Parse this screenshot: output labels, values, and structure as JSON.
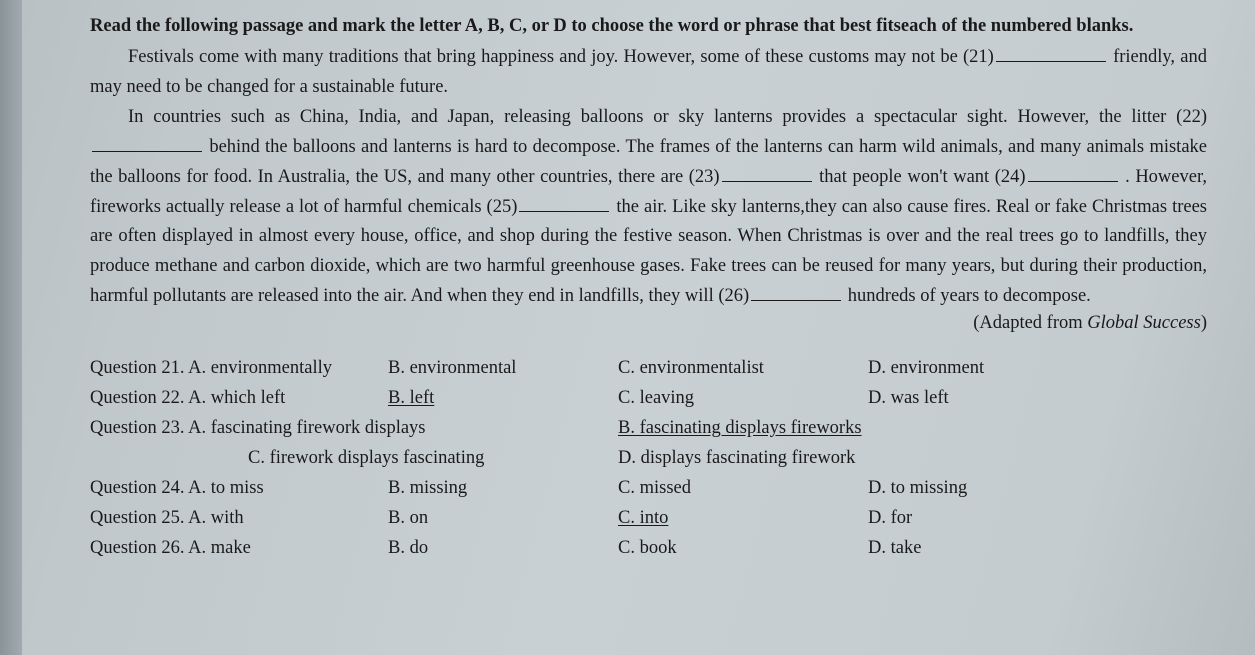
{
  "instruction": "Read the following passage and mark the letter A, B, C, or D to choose the word or phrase that best fitseach of the numbered blanks.",
  "passage": {
    "p1a": "Festivals come with many traditions that bring happiness and joy. However, some of these customs may not be (21)",
    "p1b": " friendly, and may need to be changed for a sustainable future.",
    "p2a": "In countries such as China, India, and Japan, releasing balloons or sky lanterns provides a spectacular sight. However, the litter (22)",
    "p2b": " behind the balloons and lanterns is hard to decompose. The frames of the lanterns can harm wild animals, and many animals mistake the balloons for food. In Australia, the US, and many other countries, there are (23)",
    "p2c": " that people won't want (24)",
    "p2d": " . However, fireworks actually release a lot of harmful chemicals (25)",
    "p2e": " the air. Like sky lanterns,they can also cause fires. Real or fake Christmas trees are often displayed in almost every house, office, and shop during the festive season. When Christmas is over and the real trees go to landfills, they produce methane and carbon dioxide, which are two harmful greenhouse gases. Fake trees can be reused for many years, but during their production, harmful pollutants are released into the air. And when they end in landfills, they will (26)",
    "p2f": " hundreds of years to decompose."
  },
  "adapted_prefix": "(Adapted from ",
  "adapted_source": "Global Success",
  "adapted_suffix": ")",
  "questions": {
    "q21": {
      "label": "Question 21. A. environmentally",
      "b": "B. environmental",
      "c": "C. environmentalist",
      "d": "D. environment"
    },
    "q22": {
      "label": "Question 22. A. which left",
      "b": "B. left",
      "c": "C. leaving",
      "d": "D. was left"
    },
    "q23": {
      "label": "Question 23. A. fascinating firework displays",
      "b": "B. fascinating displays fireworks",
      "c": "C. firework displays fascinating",
      "d": "D. displays fascinating firework"
    },
    "q24": {
      "label": "Question 24. A. to miss",
      "b": "B. missing",
      "c": "C. missed",
      "d": "D. to missing"
    },
    "q25": {
      "label": "Question 25. A. with",
      "b": "B. on",
      "c": "C. into",
      "d": "D. for"
    },
    "q26": {
      "label": "Question 26. A. make",
      "b": "B. do",
      "c": "C. book",
      "d": "D. take"
    }
  }
}
